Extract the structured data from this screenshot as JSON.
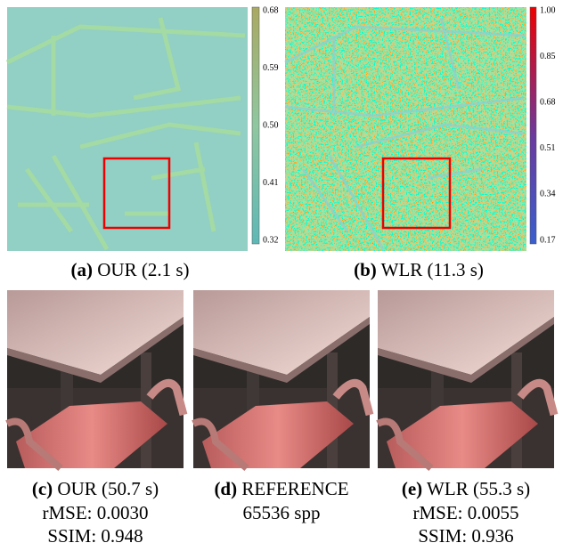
{
  "top": [
    {
      "label": "(a)",
      "caption": "OUR (2.1 s)",
      "colorbar_ticks": [
        "0.68",
        "0.59",
        "0.50",
        "0.41",
        "0.32"
      ]
    },
    {
      "label": "(b)",
      "caption": "WLR (11.3 s)",
      "colorbar_ticks": [
        "1.00",
        "0.85",
        "0.68",
        "0.51",
        "0.34",
        "0.17"
      ]
    }
  ],
  "bottom": [
    {
      "label": "(c)",
      "caption": "OUR (50.7 s)",
      "lines": [
        "rMSE: 0.0030",
        "SSIM: 0.948"
      ]
    },
    {
      "label": "(d)",
      "caption": "REFERENCE",
      "lines": [
        "65536 spp"
      ]
    },
    {
      "label": "(e)",
      "caption": "WLR (55.3 s)",
      "lines": [
        "rMSE: 0.0055",
        "SSIM: 0.936"
      ]
    }
  ]
}
